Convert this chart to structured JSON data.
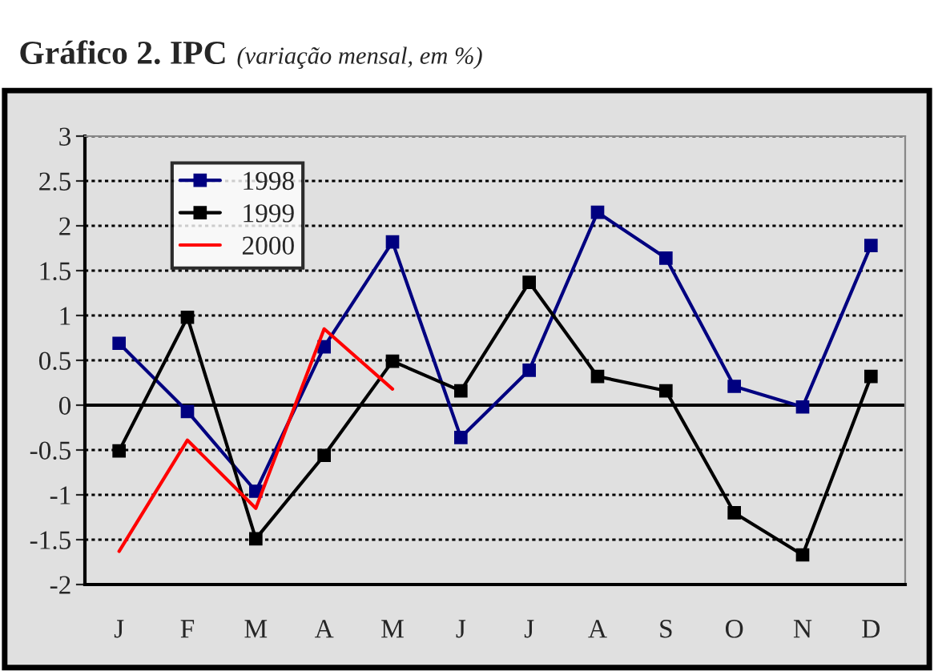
{
  "chart_data": {
    "type": "line",
    "title": "Gráfico 2. IPC",
    "subtitle": "(variação mensal, em %)",
    "categories": [
      "J",
      "F",
      "M",
      "A",
      "M",
      "J",
      "J",
      "A",
      "S",
      "O",
      "N",
      "D"
    ],
    "series": [
      {
        "name": "1998",
        "color": "#000080",
        "marker": "square",
        "values": [
          0.69,
          -0.07,
          -0.96,
          0.65,
          1.82,
          -0.36,
          0.39,
          2.15,
          1.64,
          0.21,
          -0.02,
          1.78
        ]
      },
      {
        "name": "1999",
        "color": "#000000",
        "marker": "square",
        "values": [
          -0.51,
          0.98,
          -1.49,
          -0.56,
          0.49,
          0.16,
          1.37,
          0.32,
          0.16,
          -1.2,
          -1.67,
          0.32
        ]
      },
      {
        "name": "2000",
        "color": "#ff0000",
        "marker": "none",
        "values": [
          -1.63,
          -0.39,
          -1.15,
          0.85,
          0.18,
          null,
          null,
          null,
          null,
          null,
          null,
          null
        ]
      }
    ],
    "ylim": [
      -2,
      3
    ],
    "yticks": [
      -2,
      -1.5,
      -1,
      -0.5,
      0,
      0.5,
      1,
      1.5,
      2,
      2.5,
      3
    ],
    "ref_lines": [
      {
        "axis": "y",
        "value": 0,
        "color": "#000000"
      }
    ],
    "grid": "y",
    "legend": "top left",
    "line_style": "solid"
  }
}
